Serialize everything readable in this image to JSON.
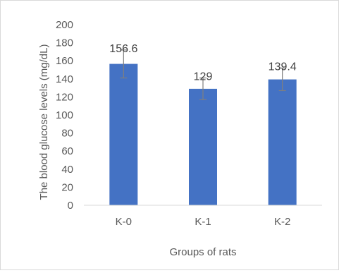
{
  "chart_data": {
    "type": "bar",
    "title": "",
    "categories": [
      "K-0",
      "K-1",
      "K-2"
    ],
    "values": [
      156.6,
      129,
      139.4
    ],
    "data_labels": [
      "156.6",
      "129",
      "139.4"
    ],
    "error_bars": {
      "upper": [
        172,
        141,
        152
      ],
      "lower": [
        141,
        117,
        127
      ]
    },
    "xlabel": "Groups of rats",
    "ylabel": "The blood glucose levels (mg/dL)",
    "ylim": [
      0,
      200
    ],
    "y_ticks": [
      0,
      20,
      40,
      60,
      80,
      100,
      120,
      140,
      160,
      180,
      200
    ],
    "grid": false,
    "legend": "none",
    "colors": {
      "bar": "#4472c4",
      "error_bar": "#7f7f7f",
      "axis": "#d9d9d9",
      "text": "#595959",
      "label_text": "#404040"
    }
  }
}
